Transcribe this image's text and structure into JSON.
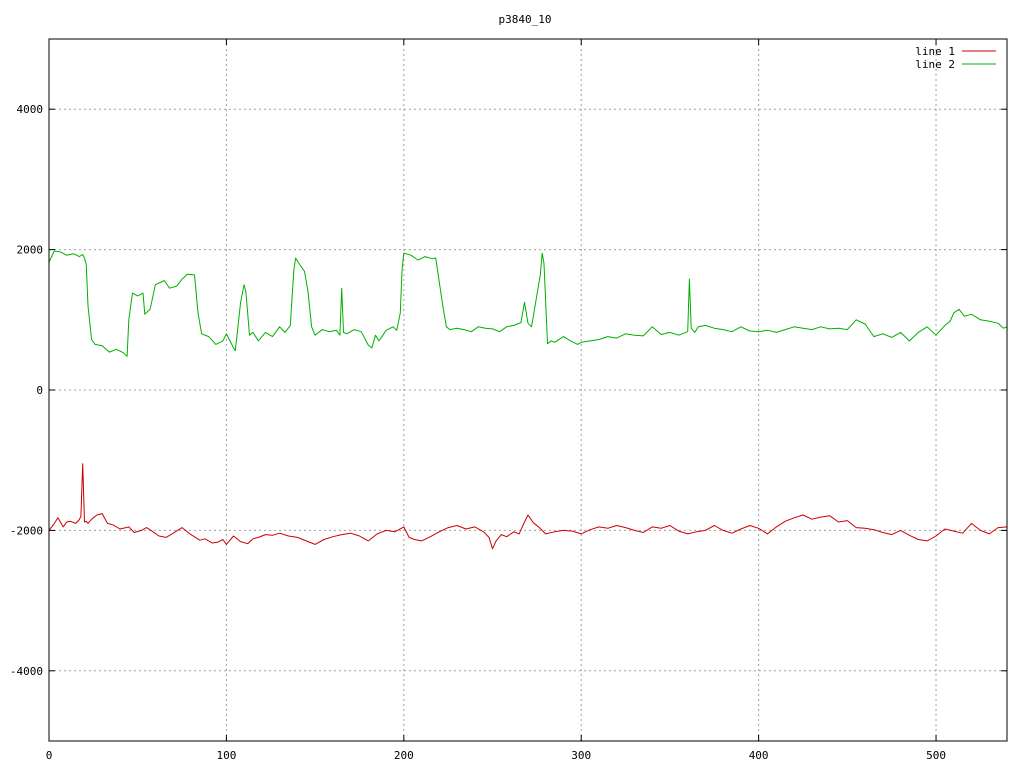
{
  "chart_data": {
    "type": "line",
    "title": "p3840_10",
    "xlabel": "",
    "ylabel": "",
    "xlim": [
      0,
      540
    ],
    "ylim": [
      -5000,
      5000
    ],
    "x_ticks": [
      0,
      100,
      200,
      300,
      400,
      500
    ],
    "y_ticks": [
      -4000,
      -2000,
      0,
      2000,
      4000
    ],
    "grid": true,
    "legend_position": "top-right",
    "series": [
      {
        "name": "line 1",
        "color": "#cc0000",
        "x": [
          0,
          3,
          5,
          8,
          10,
          12,
          15,
          17,
          18,
          19,
          20,
          21,
          22,
          24,
          27,
          30,
          33,
          36,
          40,
          45,
          48,
          52,
          55,
          58,
          62,
          66,
          70,
          75,
          80,
          85,
          88,
          92,
          95,
          98,
          100,
          104,
          108,
          112,
          115,
          118,
          122,
          126,
          130,
          135,
          140,
          145,
          150,
          155,
          160,
          165,
          170,
          175,
          180,
          185,
          190,
          195,
          200,
          203,
          206,
          210,
          215,
          220,
          225,
          230,
          235,
          240,
          245,
          248,
          250,
          252,
          255,
          258,
          262,
          265,
          268,
          270,
          273,
          276,
          280,
          285,
          290,
          295,
          300,
          305,
          310,
          315,
          320,
          325,
          330,
          335,
          340,
          345,
          350,
          355,
          360,
          365,
          370,
          375,
          380,
          385,
          390,
          395,
          400,
          405,
          410,
          415,
          420,
          425,
          430,
          435,
          440,
          445,
          450,
          455,
          460,
          465,
          470,
          475,
          480,
          485,
          490,
          495,
          500,
          505,
          510,
          515,
          520,
          525,
          530,
          535,
          540
        ],
        "values": [
          -2000,
          -1900,
          -1820,
          -1950,
          -1880,
          -1870,
          -1900,
          -1850,
          -1800,
          -1050,
          -1880,
          -1870,
          -1900,
          -1840,
          -1780,
          -1760,
          -1900,
          -1920,
          -1980,
          -1950,
          -2030,
          -2000,
          -1960,
          -2010,
          -2080,
          -2100,
          -2040,
          -1960,
          -2060,
          -2140,
          -2120,
          -2180,
          -2170,
          -2130,
          -2200,
          -2080,
          -2160,
          -2190,
          -2120,
          -2100,
          -2060,
          -2070,
          -2040,
          -2080,
          -2100,
          -2150,
          -2200,
          -2130,
          -2090,
          -2060,
          -2040,
          -2080,
          -2150,
          -2050,
          -2000,
          -2020,
          -1950,
          -2100,
          -2130,
          -2150,
          -2090,
          -2020,
          -1960,
          -1930,
          -1980,
          -1950,
          -2020,
          -2100,
          -2260,
          -2150,
          -2060,
          -2090,
          -2020,
          -2050,
          -1880,
          -1780,
          -1890,
          -1950,
          -2050,
          -2020,
          -2000,
          -2010,
          -2050,
          -1990,
          -1950,
          -1970,
          -1930,
          -1960,
          -2000,
          -2030,
          -1950,
          -1970,
          -1930,
          -2010,
          -2050,
          -2020,
          -2000,
          -1930,
          -2000,
          -2040,
          -1980,
          -1930,
          -1970,
          -2050,
          -1950,
          -1870,
          -1820,
          -1780,
          -1840,
          -1810,
          -1790,
          -1880,
          -1860,
          -1960,
          -1970,
          -1990,
          -2030,
          -2060,
          -2000,
          -2070,
          -2130,
          -2150,
          -2080,
          -1980,
          -2010,
          -2040,
          -1900,
          -2000,
          -2050,
          -1960,
          -1950
        ]
      },
      {
        "name": "line 2",
        "color": "#00b000",
        "x": [
          0,
          3,
          6,
          10,
          14,
          17,
          19,
          20,
          21,
          22,
          24,
          26,
          30,
          34,
          38,
          42,
          44,
          45,
          47,
          50,
          53,
          54,
          57,
          60,
          65,
          68,
          72,
          75,
          78,
          82,
          84,
          86,
          90,
          94,
          98,
          100,
          102,
          104,
          105,
          108,
          110,
          111,
          113,
          115,
          118,
          122,
          126,
          130,
          133,
          136,
          138,
          139,
          141,
          144,
          146,
          148,
          150,
          154,
          158,
          162,
          164,
          165,
          166,
          168,
          172,
          176,
          180,
          182,
          184,
          186,
          190,
          194,
          196,
          198,
          199,
          200,
          204,
          208,
          212,
          216,
          218,
          222,
          224,
          226,
          230,
          234,
          238,
          242,
          246,
          250,
          254,
          258,
          262,
          266,
          268,
          270,
          272,
          274,
          277,
          278,
          279,
          281,
          283,
          285,
          290,
          294,
          298,
          300,
          305,
          310,
          315,
          320,
          325,
          330,
          335,
          340,
          345,
          350,
          355,
          360,
          361,
          362,
          364,
          366,
          370,
          375,
          380,
          385,
          390,
          395,
          400,
          405,
          410,
          415,
          420,
          425,
          430,
          435,
          440,
          445,
          450,
          455,
          460,
          465,
          470,
          475,
          480,
          485,
          490,
          495,
          500,
          505,
          508,
          510,
          513,
          516,
          520,
          525,
          530,
          535,
          538,
          540
        ],
        "values": [
          1820,
          1980,
          1970,
          1920,
          1940,
          1900,
          1930,
          1880,
          1780,
          1200,
          720,
          650,
          630,
          540,
          580,
          530,
          480,
          1000,
          1380,
          1340,
          1380,
          1080,
          1150,
          1500,
          1560,
          1450,
          1480,
          1580,
          1650,
          1640,
          1100,
          800,
          760,
          650,
          700,
          800,
          700,
          600,
          560,
          1250,
          1500,
          1400,
          780,
          820,
          700,
          820,
          760,
          900,
          820,
          920,
          1700,
          1880,
          1800,
          1690,
          1400,
          900,
          780,
          860,
          830,
          850,
          780,
          1450,
          820,
          800,
          860,
          830,
          640,
          600,
          780,
          700,
          850,
          900,
          850,
          1100,
          1700,
          1950,
          1920,
          1850,
          1900,
          1870,
          1880,
          1200,
          900,
          860,
          880,
          860,
          830,
          900,
          880,
          870,
          830,
          900,
          920,
          960,
          1250,
          950,
          900,
          1200,
          1650,
          1950,
          1800,
          660,
          700,
          680,
          760,
          700,
          650,
          680,
          700,
          720,
          760,
          740,
          800,
          780,
          770,
          900,
          790,
          820,
          780,
          830,
          1580,
          880,
          820,
          900,
          920,
          880,
          860,
          830,
          900,
          840,
          830,
          850,
          820,
          860,
          900,
          880,
          860,
          900,
          870,
          880,
          860,
          1000,
          940,
          760,
          800,
          750,
          820,
          700,
          820,
          900,
          780,
          920,
          980,
          1100,
          1150,
          1050,
          1080,
          1000,
          980,
          950,
          880,
          900
        ]
      }
    ]
  }
}
